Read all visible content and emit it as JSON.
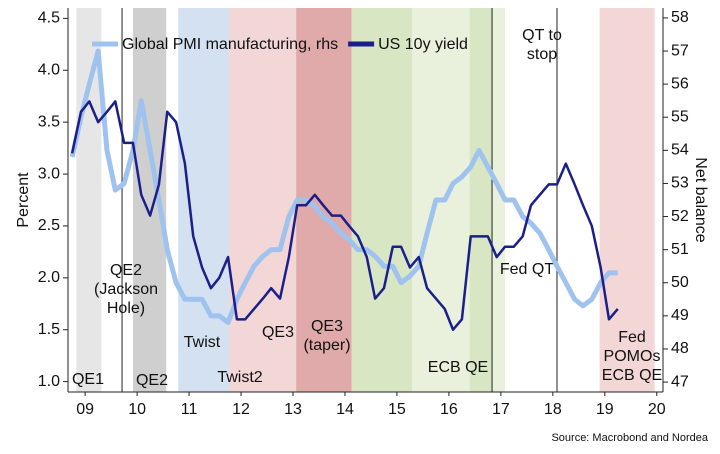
{
  "chart_data": {
    "type": "line",
    "y_label": "Percent",
    "y2_label": "Net balance",
    "source": "Source: Macrobond and Nordea",
    "xlim": [
      2009.17,
      2020.62
    ],
    "xticks": [
      {
        "value": 2009.5,
        "label": "09"
      },
      {
        "value": 2010.5,
        "label": "10"
      },
      {
        "value": 2011.5,
        "label": "11"
      },
      {
        "value": 2012.5,
        "label": "12"
      },
      {
        "value": 2013.5,
        "label": "13"
      },
      {
        "value": 2014.5,
        "label": "14"
      },
      {
        "value": 2015.5,
        "label": "15"
      },
      {
        "value": 2016.5,
        "label": "16"
      },
      {
        "value": 2017.5,
        "label": "17"
      },
      {
        "value": 2018.5,
        "label": "18"
      },
      {
        "value": 2019.5,
        "label": "19"
      },
      {
        "value": 2020.5,
        "label": "20"
      }
    ],
    "ylim": [
      0.9,
      4.6
    ],
    "yticks": [
      {
        "value": 1,
        "label": "1.0"
      },
      1.5,
      {
        "value": 2,
        "label": "2.0"
      },
      2.5,
      {
        "value": 3,
        "label": "3.0"
      },
      3.5,
      {
        "value": 4,
        "label": "4.0"
      },
      4.5
    ],
    "y2lim": [
      46.7,
      58.3
    ],
    "y2ticks": [
      47,
      48,
      49,
      50,
      51,
      52,
      53,
      54,
      55,
      56,
      57,
      58
    ],
    "bands": [
      {
        "start": 2009.33,
        "end": 2009.81,
        "color": "#e6e6e6"
      },
      {
        "start": 2010.42,
        "end": 2011.06,
        "color": "#cfcfcf"
      },
      {
        "start": 2011.29,
        "end": 2012.27,
        "color": "#d3e1f1"
      },
      {
        "start": 2012.27,
        "end": 2013.56,
        "color": "#f3d6d6"
      },
      {
        "start": 2013.56,
        "end": 2014.63,
        "color": "#e1aaaa"
      },
      {
        "start": 2014.63,
        "end": 2015.79,
        "color": "#d8e6c4"
      },
      {
        "start": 2015.79,
        "end": 2017.58,
        "color": "#e9f1dd"
      },
      {
        "start": 2016.9,
        "end": 2017.33,
        "color": "#d8e6c4"
      },
      {
        "start": 2019.4,
        "end": 2020.46,
        "color": "#f3d6d6"
      }
    ],
    "vlines": [
      2010.21,
      2017.33,
      2018.58
    ],
    "annotations": [
      [
        "QE1"
      ],
      [
        "QE2",
        "(Jackson",
        "Hole)"
      ],
      [
        "QE2"
      ],
      [
        "Twist"
      ],
      [
        "Twist2"
      ],
      [
        "QE3"
      ],
      [
        "QE3",
        "(taper)"
      ],
      [
        "ECB QE"
      ],
      [
        "QT to",
        "stop"
      ],
      [
        "Fed QT"
      ],
      [
        "Fed",
        "POMOs",
        "ECB QE"
      ]
    ],
    "x": [
      2009.25,
      2009.42,
      2009.58,
      2009.75,
      2009.92,
      2010.08,
      2010.25,
      2010.42,
      2010.58,
      2010.75,
      2010.92,
      2011.08,
      2011.25,
      2011.42,
      2011.58,
      2011.75,
      2011.92,
      2012.08,
      2012.25,
      2012.42,
      2012.58,
      2012.75,
      2012.92,
      2013.08,
      2013.25,
      2013.42,
      2013.58,
      2013.75,
      2013.92,
      2014.08,
      2014.25,
      2014.42,
      2014.58,
      2014.75,
      2014.92,
      2015.08,
      2015.25,
      2015.42,
      2015.58,
      2015.75,
      2015.92,
      2016.08,
      2016.25,
      2016.42,
      2016.58,
      2016.75,
      2016.92,
      2017.08,
      2017.25,
      2017.42,
      2017.58,
      2017.75,
      2017.92,
      2018.08,
      2018.25,
      2018.42,
      2018.58,
      2018.75,
      2018.92,
      2019.08,
      2019.25,
      2019.42,
      2019.58,
      2019.75
    ],
    "series": [
      {
        "name": "Global PMI manufacturing, rhs",
        "color": "#9fc3ee",
        "axis": "y2",
        "values": [
          53.8,
          55,
          56,
          57,
          54,
          52.8,
          53,
          54,
          55.5,
          54,
          52.5,
          51,
          50,
          49.5,
          49.5,
          49.5,
          49,
          49,
          48.8,
          49.5,
          50,
          50.5,
          50.8,
          51,
          51,
          52,
          52.5,
          52.5,
          52.3,
          52,
          51.8,
          51.5,
          51.3,
          51,
          51,
          50.8,
          50.5,
          50.5,
          50,
          50.2,
          50.5,
          51.5,
          52.5,
          52.5,
          53,
          53.2,
          53.5,
          54,
          53.5,
          53,
          52.5,
          52.5,
          52,
          51.8,
          51.5,
          51,
          50.5,
          50,
          49.5,
          49.3,
          49.5,
          50,
          50.3,
          50.3
        ]
      },
      {
        "name": "US 10y yield",
        "color": "#1b1f8a",
        "values": [
          3.2,
          3.6,
          3.7,
          3.5,
          3.6,
          3.7,
          3.3,
          3.3,
          2.8,
          2.6,
          2.9,
          3.6,
          3.5,
          3.1,
          2.4,
          2.1,
          1.9,
          2.0,
          2.2,
          1.6,
          1.6,
          1.7,
          1.8,
          1.9,
          1.8,
          2.2,
          2.7,
          2.7,
          2.8,
          2.7,
          2.6,
          2.6,
          2.5,
          2.4,
          2.2,
          1.8,
          1.9,
          2.3,
          2.3,
          2.1,
          2.2,
          1.9,
          1.8,
          1.7,
          1.5,
          1.6,
          2.4,
          2.4,
          2.4,
          2.2,
          2.3,
          2.3,
          2.4,
          2.7,
          2.8,
          2.9,
          2.9,
          3.1,
          2.9,
          2.7,
          2.5,
          2.1,
          1.6,
          1.7
        ]
      }
    ]
  }
}
